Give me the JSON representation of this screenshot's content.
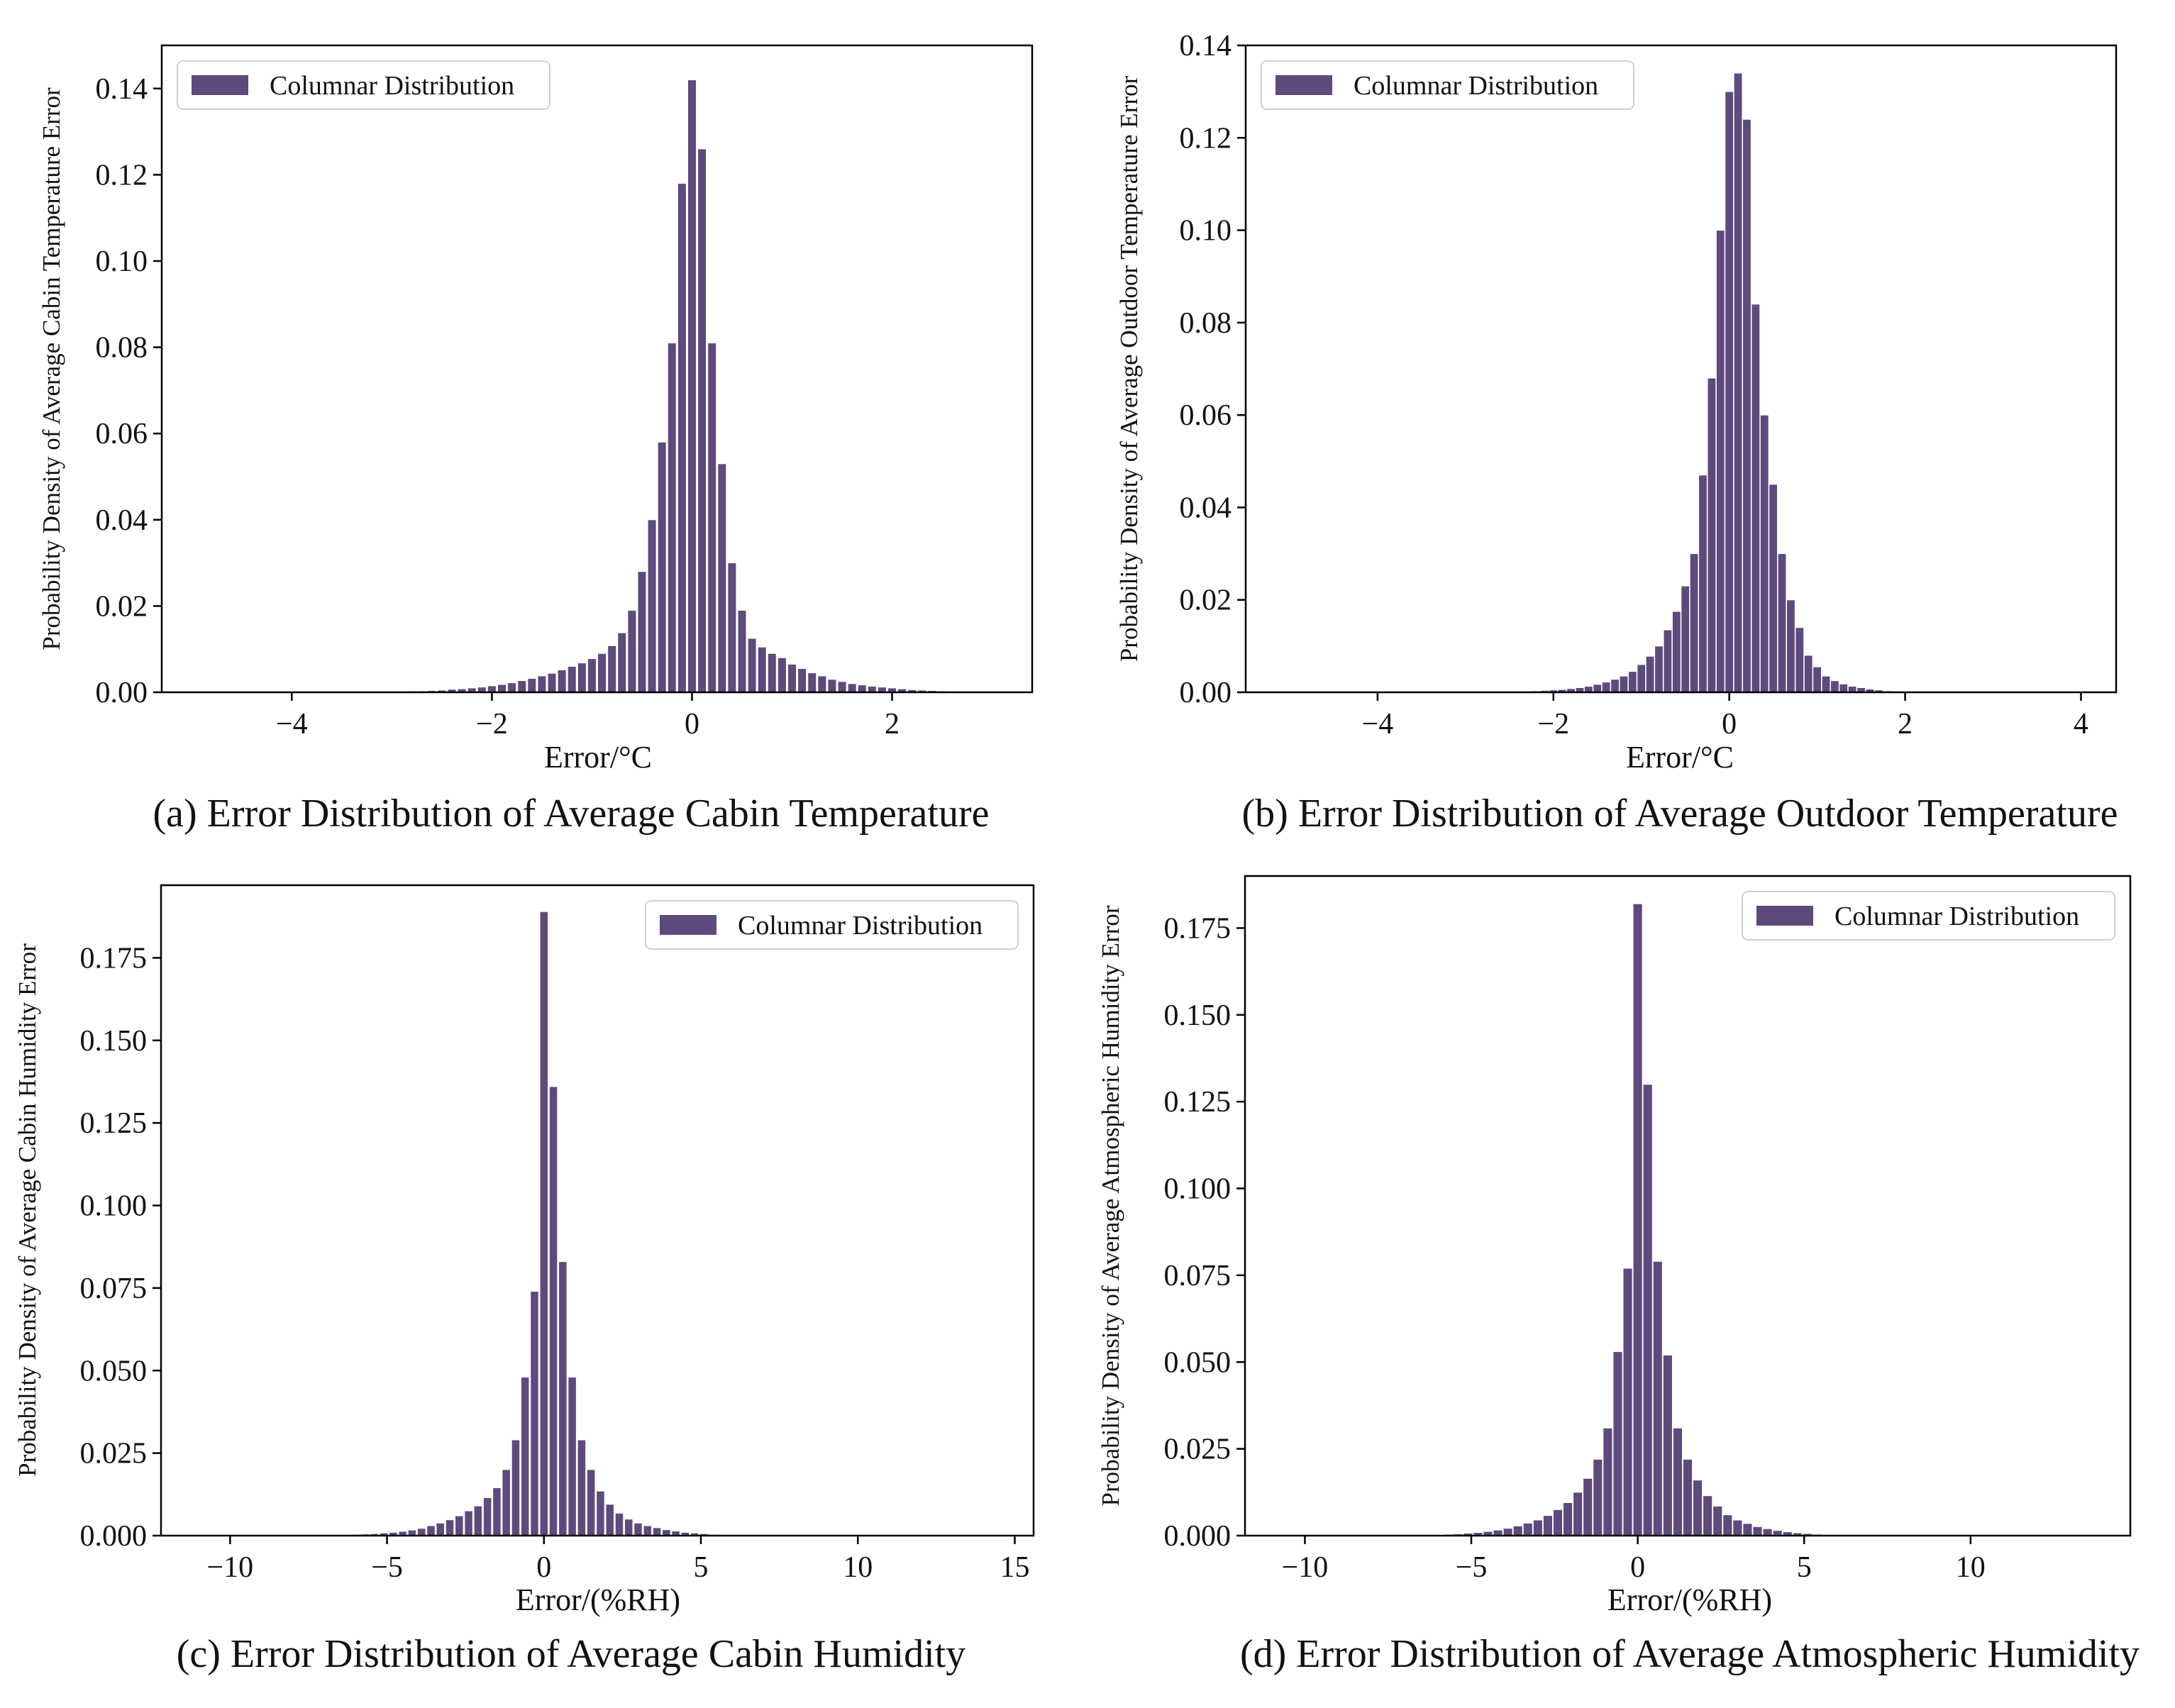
{
  "colors": {
    "bar": "#5e4a7c",
    "bar_edge": "#ffffff",
    "axis": "#000000"
  },
  "chart_data": [
    {
      "type": "bar",
      "title": "(a) Error Distribution of Average Cabin Temperature",
      "xlabel": "Error/°C",
      "ylabel": "Probability Density of Average Cabin Temperature Error",
      "xlim": [
        -5.3,
        3.4
      ],
      "ylim": [
        0,
        0.15
      ],
      "xticks": [
        -4,
        -2,
        0,
        2
      ],
      "xtick_labels": [
        "−4",
        "−2",
        "0",
        "2"
      ],
      "yticks": [
        0,
        0.02,
        0.04,
        0.06,
        0.08,
        0.1,
        0.12,
        0.14
      ],
      "ytick_labels": [
        "0.00",
        "0.02",
        "0.04",
        "0.06",
        "0.08",
        "0.10",
        "0.12",
        "0.14"
      ],
      "legend": "Columnar Distribution",
      "legend_position": "top-left",
      "bin_width": 0.085,
      "x": [
        -2.8,
        -2.7,
        -2.6,
        -2.5,
        -2.4,
        -2.3,
        -2.2,
        -2.1,
        -2.0,
        -1.9,
        -1.8,
        -1.7,
        -1.6,
        -1.5,
        -1.4,
        -1.3,
        -1.2,
        -1.1,
        -1.0,
        -0.9,
        -0.8,
        -0.7,
        -0.6,
        -0.5,
        -0.4,
        -0.3,
        -0.2,
        -0.1,
        0.0,
        0.1,
        0.2,
        0.3,
        0.4,
        0.5,
        0.6,
        0.7,
        0.8,
        0.9,
        1.0,
        1.1,
        1.2,
        1.3,
        1.4,
        1.5,
        1.6,
        1.7,
        1.8,
        1.9,
        2.0,
        2.1,
        2.2,
        2.3,
        2.4,
        2.5,
        2.6,
        2.7,
        2.8,
        2.9,
        3.0
      ],
      "values": [
        0.0003,
        0.0003,
        0.0004,
        0.0005,
        0.0007,
        0.0008,
        0.001,
        0.0012,
        0.0015,
        0.0018,
        0.0022,
        0.0027,
        0.0032,
        0.0038,
        0.0044,
        0.0052,
        0.006,
        0.0068,
        0.0078,
        0.009,
        0.0108,
        0.0138,
        0.019,
        0.028,
        0.04,
        0.058,
        0.081,
        0.118,
        0.142,
        0.126,
        0.081,
        0.053,
        0.03,
        0.019,
        0.0125,
        0.0105,
        0.009,
        0.008,
        0.0065,
        0.0055,
        0.0045,
        0.0038,
        0.003,
        0.0025,
        0.002,
        0.0017,
        0.0014,
        0.0012,
        0.001,
        0.0008,
        0.0006,
        0.0005,
        0.0004,
        0.0003,
        0.0002,
        0.0002,
        0.0001,
        0.0001,
        0.0001
      ]
    },
    {
      "type": "bar",
      "title": "(b) Error Distribution of Average Outdoor Temperature",
      "xlabel": "Error/°C",
      "ylabel": "Probability Density of Average Outdoor Temperature Error",
      "xlim": [
        -5.5,
        4.4
      ],
      "ylim": [
        0,
        0.14
      ],
      "xticks": [
        -4,
        -2,
        0,
        2,
        4
      ],
      "xtick_labels": [
        "−4",
        "−2",
        "0",
        "2",
        "4"
      ],
      "yticks": [
        0,
        0.02,
        0.04,
        0.06,
        0.08,
        0.1,
        0.12,
        0.14
      ],
      "ytick_labels": [
        "0.00",
        "0.02",
        "0.04",
        "0.06",
        "0.08",
        "0.10",
        "0.12",
        "0.14"
      ],
      "legend": "Columnar Distribution",
      "legend_position": "top-left",
      "bin_width": 0.095,
      "x": [
        -2.2,
        -2.1,
        -2.0,
        -1.9,
        -1.8,
        -1.7,
        -1.6,
        -1.5,
        -1.4,
        -1.3,
        -1.2,
        -1.1,
        -1.0,
        -0.9,
        -0.8,
        -0.7,
        -0.6,
        -0.5,
        -0.4,
        -0.3,
        -0.2,
        -0.1,
        0.0,
        0.1,
        0.2,
        0.3,
        0.4,
        0.5,
        0.6,
        0.7,
        0.8,
        0.9,
        1.0,
        1.1,
        1.2,
        1.3,
        1.4,
        1.5,
        1.6,
        1.7,
        1.8,
        1.9,
        2.0
      ],
      "values": [
        0.0003,
        0.0004,
        0.0005,
        0.0006,
        0.0008,
        0.001,
        0.0013,
        0.0017,
        0.0022,
        0.0028,
        0.0035,
        0.0045,
        0.006,
        0.0078,
        0.01,
        0.0135,
        0.0175,
        0.023,
        0.03,
        0.047,
        0.068,
        0.1,
        0.13,
        0.134,
        0.124,
        0.084,
        0.06,
        0.045,
        0.03,
        0.02,
        0.014,
        0.008,
        0.0055,
        0.0035,
        0.0025,
        0.0018,
        0.0013,
        0.001,
        0.0007,
        0.0005,
        0.0003,
        0.0002,
        0.0001
      ]
    },
    {
      "type": "bar",
      "title": "(c) Error Distribution of Average Cabin Humidity",
      "xlabel": "Error/(%RH)",
      "ylabel": "Probability Density of Average Cabin Humidity Error",
      "xlim": [
        -12.2,
        15.6
      ],
      "ylim": [
        0,
        0.197
      ],
      "xticks": [
        -10,
        -5,
        0,
        5,
        10,
        15
      ],
      "xtick_labels": [
        "−10",
        "−5",
        "0",
        "5",
        "10",
        "15"
      ],
      "yticks": [
        0,
        0.025,
        0.05,
        0.075,
        0.1,
        0.125,
        0.15,
        0.175
      ],
      "ytick_labels": [
        "0.000",
        "0.025",
        "0.050",
        "0.075",
        "0.100",
        "0.125",
        "0.150",
        "0.175"
      ],
      "legend": "Columnar Distribution",
      "legend_position": "top-right",
      "bin_width": 0.26,
      "x": [
        -6.0,
        -5.7,
        -5.4,
        -5.1,
        -4.8,
        -4.5,
        -4.2,
        -3.9,
        -3.6,
        -3.3,
        -3.0,
        -2.7,
        -2.4,
        -2.1,
        -1.8,
        -1.5,
        -1.2,
        -0.9,
        -0.6,
        -0.3,
        0.0,
        0.3,
        0.6,
        0.9,
        1.2,
        1.5,
        1.8,
        2.1,
        2.4,
        2.7,
        3.0,
        3.3,
        3.6,
        3.9,
        4.2,
        4.5,
        4.8,
        5.1,
        5.4,
        5.7,
        6.0
      ],
      "values": [
        0.0004,
        0.0005,
        0.0006,
        0.0008,
        0.001,
        0.0013,
        0.0017,
        0.0022,
        0.003,
        0.0038,
        0.0048,
        0.006,
        0.0075,
        0.009,
        0.0115,
        0.0145,
        0.02,
        0.029,
        0.048,
        0.074,
        0.189,
        0.136,
        0.083,
        0.048,
        0.029,
        0.02,
        0.0135,
        0.0095,
        0.0068,
        0.005,
        0.0038,
        0.003,
        0.0024,
        0.0018,
        0.0014,
        0.001,
        0.0008,
        0.0006,
        0.0004,
        0.0003,
        0.0002
      ]
    },
    {
      "type": "bar",
      "title": "(d) Error Distribution of Average Atmospheric Humidity",
      "xlabel": "Error/(%RH)",
      "ylabel": "Probability Density of Average Atmospheric Humidity Error",
      "xlim": [
        -11.8,
        14.8
      ],
      "ylim": [
        0,
        0.19
      ],
      "xticks": [
        -10,
        -5,
        0,
        5,
        10
      ],
      "xtick_labels": [
        "−10",
        "−5",
        "0",
        "5",
        "10"
      ],
      "yticks": [
        0,
        0.025,
        0.05,
        0.075,
        0.1,
        0.125,
        0.15,
        0.175
      ],
      "ytick_labels": [
        "0.000",
        "0.025",
        "0.050",
        "0.075",
        "0.100",
        "0.125",
        "0.150",
        "0.175"
      ],
      "legend": "Columnar Distribution",
      "legend_position": "top-right",
      "bin_width": 0.28,
      "x": [
        -6.0,
        -5.7,
        -5.4,
        -5.1,
        -4.8,
        -4.5,
        -4.2,
        -3.9,
        -3.6,
        -3.3,
        -3.0,
        -2.7,
        -2.4,
        -2.1,
        -1.8,
        -1.5,
        -1.2,
        -0.9,
        -0.6,
        -0.3,
        0.0,
        0.3,
        0.6,
        0.9,
        1.2,
        1.5,
        1.8,
        2.1,
        2.4,
        2.7,
        3.0,
        3.3,
        3.6,
        3.9,
        4.2,
        4.5,
        4.8,
        5.1,
        5.4,
        5.7,
        6.0
      ],
      "values": [
        0.0003,
        0.0004,
        0.0005,
        0.0007,
        0.0009,
        0.0012,
        0.0016,
        0.0021,
        0.0028,
        0.0036,
        0.0045,
        0.0058,
        0.0075,
        0.0095,
        0.0125,
        0.0165,
        0.022,
        0.031,
        0.053,
        0.077,
        0.182,
        0.13,
        0.079,
        0.052,
        0.031,
        0.022,
        0.016,
        0.0115,
        0.0085,
        0.006,
        0.0045,
        0.0035,
        0.0026,
        0.002,
        0.0015,
        0.0011,
        0.0008,
        0.0006,
        0.0004,
        0.0003,
        0.0002
      ]
    }
  ]
}
